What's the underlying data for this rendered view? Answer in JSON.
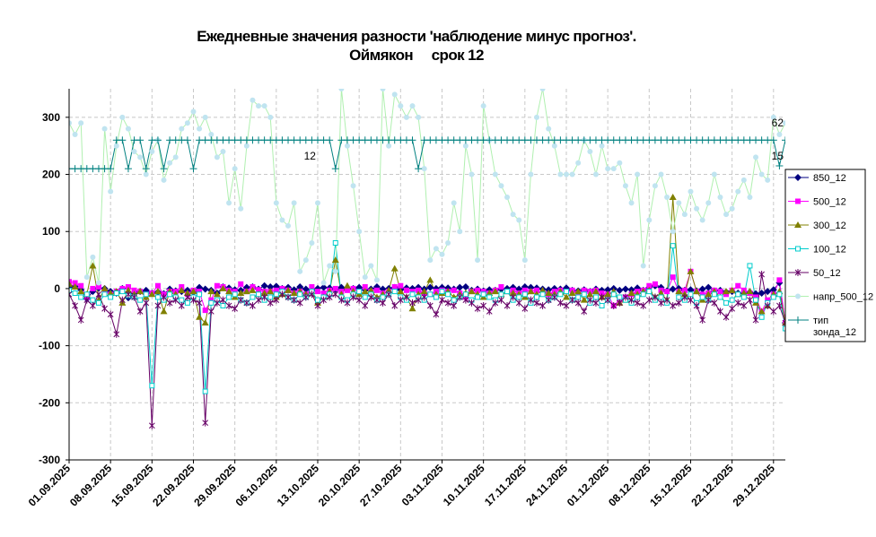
{
  "chart_data": {
    "type": "line",
    "title": "Ежедневные значения разности 'наблюдение минус прогноз'.",
    "subtitle": "Оймякон     срок 12",
    "xlabel": "",
    "ylabel": "",
    "ylim": [
      -300,
      350
    ],
    "yticks": [
      -300,
      -200,
      -100,
      0,
      100,
      200,
      300
    ],
    "xlim": [
      "2025-09-01",
      "2025-12-31"
    ],
    "xticks": [
      "01.09.2025",
      "08.09.2025",
      "15.09.2025",
      "22.09.2025",
      "29.09.2025",
      "06.10.2025",
      "13.10.2025",
      "20.10.2025",
      "27.10.2025",
      "03.11.2025",
      "10.11.2025",
      "17.11.2025",
      "24.11.2025",
      "01.12.2025",
      "08.12.2025",
      "15.12.2025",
      "22.12.2025",
      "29.12.2025"
    ],
    "grid": true,
    "legend_position": "right",
    "point_labels": [
      {
        "text": "12",
        "x": "2025-10-13",
        "y": 232
      },
      {
        "text": "62",
        "x": "2025-12-31",
        "y": 290
      },
      {
        "text": "15",
        "x": "2025-12-31",
        "y": 232
      }
    ],
    "series": [
      {
        "name": "850_12",
        "color": "#000080",
        "marker": "diamond",
        "values": [
          2,
          4,
          -2,
          -18,
          -5,
          1,
          0,
          -5,
          -8,
          0,
          -16,
          -8,
          -5,
          -3,
          -8,
          -6,
          -9,
          -1,
          -4,
          -5,
          -3,
          -6,
          2,
          -1,
          -3,
          -8,
          3,
          1,
          -2,
          -3,
          2,
          3,
          -1,
          5,
          3,
          4,
          0,
          2,
          -2,
          3,
          -1,
          -3,
          0,
          2,
          1,
          -2,
          2,
          -1,
          0,
          2,
          -2,
          -1,
          3,
          -1,
          0,
          2,
          -2,
          1,
          0,
          2,
          -1,
          2,
          0,
          2,
          1,
          -1,
          2,
          3,
          -3,
          -1,
          -4,
          -2,
          -3,
          -1,
          0,
          2,
          -1,
          3,
          2,
          1,
          -1,
          -2,
          0,
          -1,
          1,
          -3,
          -4,
          -2,
          -5,
          -1,
          -3,
          -2,
          0,
          -3,
          -1,
          -2,
          1,
          -3,
          2,
          5,
          2,
          -4,
          -1,
          0,
          -3,
          -2,
          -4,
          -1,
          2,
          -4,
          -3,
          -6,
          -5,
          -8,
          -7,
          -6,
          -9,
          -8,
          -5,
          -2,
          10,
          -60
        ]
      },
      {
        "name": "500_12",
        "color": "#ff00ff",
        "marker": "square",
        "values": [
          12,
          10,
          5,
          -15,
          0,
          3,
          -5,
          -10,
          -5,
          0,
          3,
          -3,
          -5,
          -10,
          -8,
          5,
          -10,
          -5,
          -5,
          3,
          -10,
          -3,
          -5,
          -38,
          -20,
          5,
          3,
          -3,
          -5,
          8,
          -5,
          3,
          -2,
          -5,
          -5,
          -3,
          0,
          -3,
          -8,
          -5,
          -10,
          3,
          -5,
          -8,
          -3,
          0,
          -5,
          -3,
          0,
          -5,
          3,
          -5,
          -3,
          -8,
          -5,
          3,
          5,
          -3,
          -5,
          -3,
          -8,
          -10,
          -5,
          -3,
          -5,
          -3,
          -8,
          -15,
          -5,
          -3,
          -5,
          -8,
          -3,
          3,
          -5,
          -3,
          -8,
          -3,
          -5,
          -3,
          -8,
          -10,
          -5,
          -3,
          -5,
          -3,
          -8,
          -3,
          -5,
          -3,
          -8,
          -10,
          -30,
          -20,
          -15,
          -10,
          -5,
          -3,
          5,
          8,
          -3,
          -5,
          20,
          -5,
          -3,
          30,
          -5,
          -10,
          -8,
          -3,
          -5,
          -10,
          -3,
          5,
          -3,
          -8,
          -15,
          -40,
          -20,
          -10,
          15,
          -60
        ]
      },
      {
        "name": "300_12",
        "color": "#808000",
        "marker": "triangle",
        "values": [
          8,
          3,
          -5,
          -10,
          40,
          -20,
          0,
          -8,
          -5,
          -25,
          -3,
          -10,
          -5,
          -15,
          -10,
          -5,
          -40,
          -5,
          -10,
          -3,
          -8,
          -5,
          -50,
          -60,
          -5,
          -10,
          0,
          -5,
          -15,
          -8,
          -5,
          -3,
          -10,
          -8,
          -5,
          -15,
          -10,
          -3,
          -8,
          -5,
          -10,
          -5,
          -25,
          -15,
          -5,
          50,
          -10,
          5,
          -5,
          -10,
          -5,
          -3,
          -15,
          -10,
          -3,
          35,
          -5,
          -15,
          -35,
          -10,
          -5,
          15,
          -10,
          -8,
          -5,
          -15,
          -10,
          -8,
          -5,
          -10,
          -15,
          -8,
          -5,
          -10,
          -5,
          -8,
          -10,
          -15,
          -5,
          -10,
          -3,
          -8,
          -10,
          -5,
          -15,
          -8,
          -5,
          -20,
          -10,
          -5,
          -15,
          -10,
          -5,
          -25,
          -20,
          -8,
          -10,
          -5,
          -3,
          -15,
          -8,
          -20,
          160,
          -5,
          -10,
          30,
          -5,
          -20,
          -10,
          -5,
          -15,
          -5,
          -3,
          -10,
          -8,
          -5,
          -25,
          -40,
          -30,
          -10,
          -5,
          -60
        ]
      },
      {
        "name": "100_12",
        "color": "#00cccc",
        "marker": "square-open",
        "values": [
          -3,
          -8,
          -15,
          -10,
          -20,
          -25,
          -10,
          -15,
          -8,
          -5,
          -12,
          -15,
          -20,
          -10,
          -170,
          -15,
          -20,
          -10,
          -15,
          -20,
          -25,
          -15,
          -10,
          -180,
          -25,
          -20,
          -30,
          -15,
          -10,
          -20,
          -25,
          -15,
          -10,
          -20,
          -15,
          -10,
          -5,
          -15,
          -20,
          -10,
          -15,
          -5,
          -20,
          -15,
          -10,
          80,
          -15,
          -20,
          -10,
          -5,
          -15,
          -10,
          -20,
          -15,
          -10,
          -5,
          -15,
          -20,
          -10,
          -15,
          -20,
          -10,
          -15,
          -5,
          -10,
          -20,
          -15,
          -10,
          -20,
          -15,
          -10,
          -15,
          -20,
          -10,
          -5,
          -20,
          -15,
          -10,
          -25,
          -15,
          -10,
          -20,
          -15,
          -10,
          -5,
          -20,
          -15,
          -10,
          -25,
          -15,
          -30,
          -20,
          -10,
          -15,
          -20,
          -25,
          -15,
          -10,
          -5,
          -20,
          -15,
          -25,
          75,
          -15,
          -20,
          -10,
          -25,
          -15,
          -20,
          -10,
          -15,
          -25,
          -20,
          -10,
          -15,
          40,
          -20,
          -50,
          -25,
          -15,
          -10,
          -70
        ]
      },
      {
        "name": "50_12",
        "color": "#660066",
        "marker": "star",
        "values": [
          -10,
          -30,
          -55,
          -20,
          -30,
          -10,
          -35,
          -45,
          -80,
          -20,
          -10,
          -15,
          -40,
          -25,
          -240,
          -30,
          -15,
          -25,
          -20,
          -30,
          -15,
          -20,
          -25,
          -235,
          -40,
          -25,
          -20,
          -30,
          -35,
          -20,
          -25,
          -30,
          -20,
          -15,
          -25,
          -20,
          -10,
          -15,
          -20,
          -25,
          -15,
          -10,
          -30,
          -20,
          -15,
          -10,
          -20,
          -25,
          -15,
          -20,
          -30,
          -15,
          -20,
          -25,
          -10,
          -30,
          -20,
          -15,
          -25,
          -20,
          -15,
          -30,
          -45,
          -20,
          -25,
          -30,
          -15,
          -20,
          -25,
          -35,
          -30,
          -40,
          -25,
          -20,
          -30,
          -15,
          -25,
          -35,
          -20,
          -25,
          -30,
          -20,
          -15,
          -25,
          -30,
          -20,
          -25,
          -40,
          -20,
          -25,
          -15,
          -20,
          -30,
          -25,
          -15,
          -20,
          -25,
          -30,
          -20,
          -15,
          -25,
          -20,
          -30,
          -25,
          -15,
          -20,
          -30,
          -55,
          -20,
          -25,
          -40,
          -50,
          -35,
          -25,
          -30,
          -20,
          -55,
          25,
          -30,
          -40,
          -30,
          -60
        ]
      },
      {
        "name": "напр_500_12",
        "color": "#c0e4f0",
        "line_color": "#b0f0b0",
        "marker": "circle",
        "values": [
          290,
          270,
          290,
          20,
          55,
          10,
          280,
          170,
          250,
          300,
          280,
          240,
          230,
          200,
          240,
          260,
          190,
          220,
          230,
          280,
          290,
          310,
          280,
          300,
          270,
          230,
          240,
          150,
          210,
          140,
          250,
          330,
          320,
          320,
          300,
          150,
          120,
          110,
          150,
          30,
          50,
          80,
          150,
          10,
          40,
          30,
          350,
          250,
          180,
          100,
          20,
          40,
          15,
          350,
          250,
          340,
          320,
          300,
          320,
          300,
          210,
          50,
          70,
          60,
          80,
          150,
          100,
          250,
          200,
          50,
          320,
          260,
          200,
          180,
          160,
          130,
          120,
          50,
          200,
          300,
          350,
          280,
          250,
          200,
          200,
          200,
          220,
          260,
          240,
          200,
          250,
          210,
          210,
          220,
          180,
          150,
          200,
          40,
          120,
          180,
          200,
          160,
          100,
          150,
          130,
          170,
          140,
          120,
          150,
          200,
          160,
          130,
          140,
          170,
          190,
          160,
          230,
          200,
          190,
          300,
          270,
          290
        ]
      },
      {
        "name": "тип\nзонда_12",
        "color": "#008080",
        "marker": "plus",
        "values": [
          210,
          210,
          210,
          210,
          210,
          210,
          210,
          210,
          260,
          260,
          210,
          260,
          260,
          210,
          260,
          260,
          210,
          260,
          260,
          260,
          260,
          210,
          260,
          260,
          260,
          260,
          260,
          260,
          260,
          260,
          260,
          260,
          260,
          260,
          260,
          260,
          260,
          260,
          260,
          260,
          260,
          260,
          260,
          260,
          260,
          210,
          260,
          260,
          260,
          260,
          260,
          260,
          260,
          260,
          260,
          260,
          260,
          260,
          260,
          210,
          260,
          260,
          260,
          260,
          260,
          260,
          260,
          260,
          260,
          260,
          260,
          260,
          260,
          260,
          260,
          260,
          260,
          260,
          260,
          260,
          260,
          260,
          260,
          260,
          260,
          260,
          260,
          260,
          260,
          260,
          260,
          260,
          260,
          260,
          260,
          260,
          260,
          260,
          260,
          260,
          260,
          260,
          260,
          260,
          260,
          260,
          260,
          260,
          260,
          260,
          260,
          260,
          260,
          260,
          260,
          260,
          260,
          260,
          260,
          260,
          215,
          260
        ]
      }
    ]
  }
}
